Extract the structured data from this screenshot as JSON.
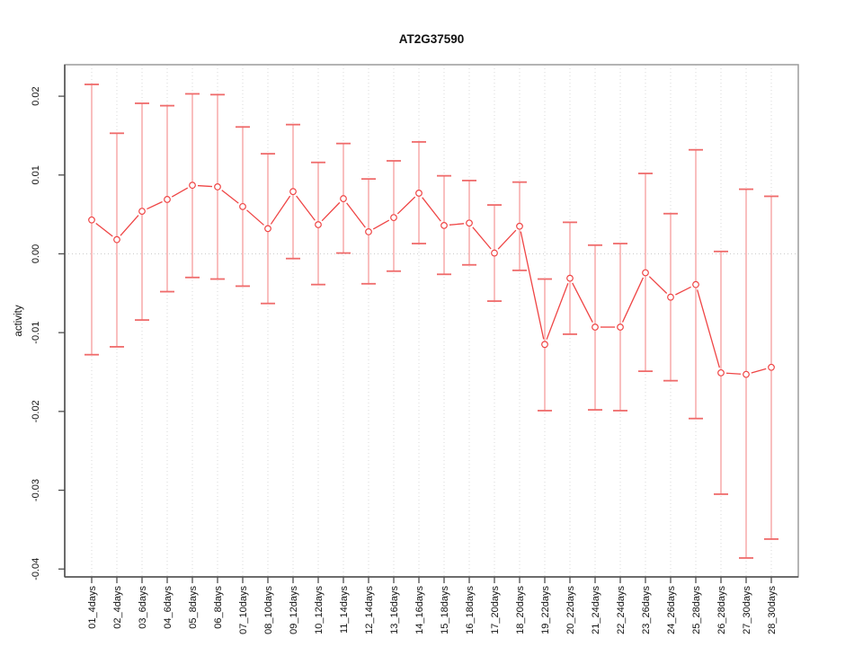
{
  "chart_data": {
    "type": "line",
    "title": "AT2G37590",
    "xlabel": "",
    "ylabel": "activity",
    "legend": "none",
    "grid": "dotted vertical gridline at each category; dotted horizontal line at 0",
    "ylim": [
      -0.041,
      0.024
    ],
    "yticks": [
      0.02,
      0.01,
      0.0,
      -0.01,
      -0.02,
      -0.03,
      -0.04
    ],
    "ytick_labels": [
      "0.02",
      "0.01",
      "0.00",
      "-0.01",
      "-0.02",
      "-0.03",
      "-0.04"
    ],
    "categories": [
      "01_4days",
      "02_4days",
      "03_6days",
      "04_6days",
      "05_8days",
      "06_8days",
      "07_10days",
      "08_10days",
      "09_12days",
      "10_12days",
      "11_14days",
      "12_14days",
      "13_16days",
      "14_16days",
      "15_18days",
      "16_18days",
      "17_20days",
      "18_20days",
      "19_22days",
      "20_22days",
      "21_24days",
      "22_24days",
      "23_26days",
      "24_26days",
      "25_28days",
      "26_28days",
      "27_30days",
      "28_30days"
    ],
    "series": [
      {
        "name": "activity",
        "values": [
          0.0043,
          0.0018,
          0.0054,
          0.0069,
          0.0087,
          0.0085,
          0.006,
          0.0032,
          0.0079,
          0.0037,
          0.007,
          0.0028,
          0.0046,
          0.0077,
          0.0036,
          0.0039,
          0.0001,
          0.0035,
          -0.0115,
          -0.0031,
          -0.0093,
          -0.0093,
          -0.0024,
          -0.0055,
          -0.0039,
          -0.0151,
          -0.0153,
          -0.0144
        ]
      }
    ],
    "error_upper": [
      0.0215,
      0.0153,
      0.0191,
      0.0188,
      0.0203,
      0.0202,
      0.0161,
      0.0127,
      0.0164,
      0.0116,
      0.014,
      0.0095,
      0.0118,
      0.0142,
      0.0099,
      0.0093,
      0.0062,
      0.0091,
      -0.0032,
      0.004,
      0.0011,
      0.0013,
      0.0102,
      0.0051,
      0.0132,
      0.0003,
      0.0082,
      0.0073
    ],
    "error_lower": [
      -0.0128,
      -0.0118,
      -0.0084,
      -0.0048,
      -0.003,
      -0.0032,
      -0.0041,
      -0.0063,
      -0.0006,
      -0.0039,
      0.0001,
      -0.0038,
      -0.0022,
      0.0013,
      -0.0026,
      -0.0014,
      -0.006,
      -0.0021,
      -0.0199,
      -0.0102,
      -0.0198,
      -0.0199,
      -0.0149,
      -0.0161,
      -0.0209,
      -0.0305,
      -0.0386,
      -0.0362
    ],
    "colors": {
      "series": "#ef4545",
      "marker_fill": "#ffffff",
      "error_stem": "#f59494",
      "error_cap": "#ef6b6b"
    }
  }
}
